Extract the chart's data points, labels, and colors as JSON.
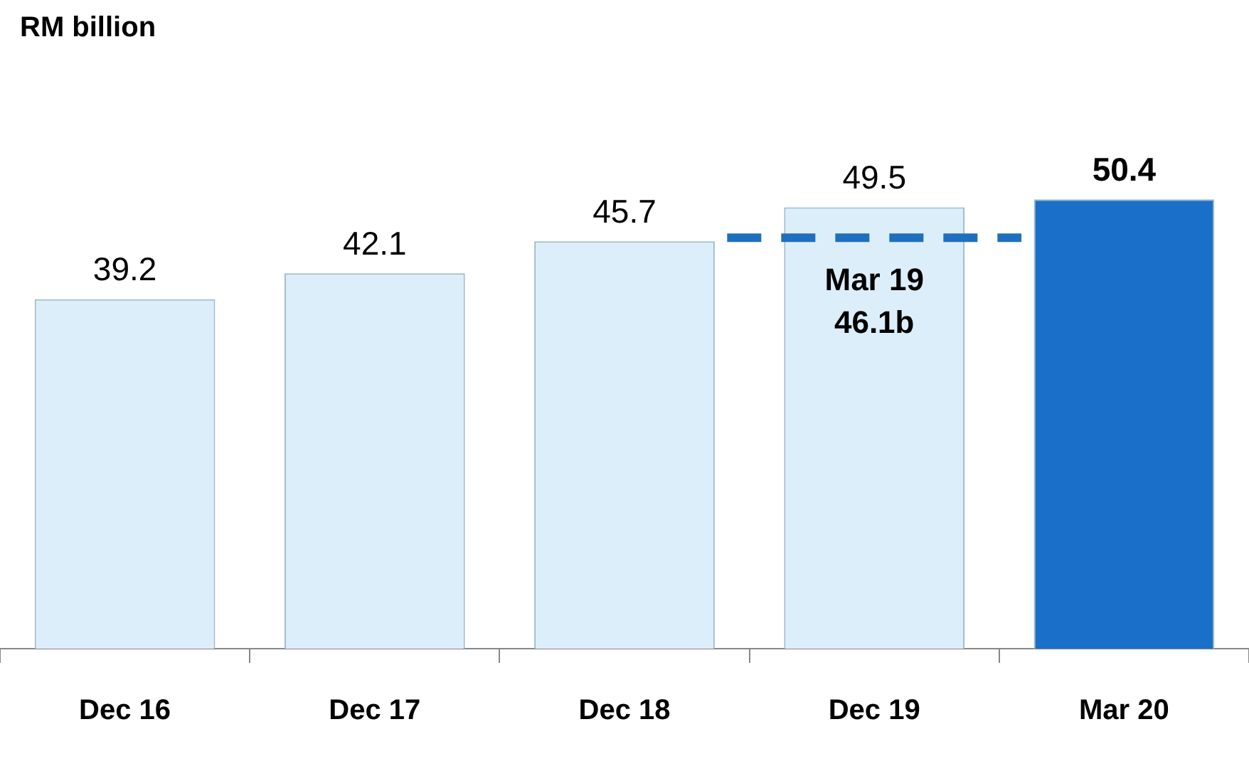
{
  "chart_data": {
    "type": "bar",
    "annotations": [
      "RM billion"
    ],
    "categories": [
      "Dec 16",
      "Dec 17",
      "Dec 18",
      "Dec 19",
      "Mar 20"
    ],
    "values": [
      39.2,
      42.1,
      45.7,
      49.5,
      50.4
    ],
    "colors": [
      "#dceefa",
      "#dceefa",
      "#dceefa",
      "#dceefa",
      "#1a6fc8"
    ],
    "ref_lines": [
      {
        "axis": "y",
        "value": 46.1,
        "label": "Mar 19\n46.1b",
        "color": "#1f6fbf",
        "line_style": "dashed"
      }
    ],
    "data_labels": true,
    "grid": false,
    "legend": false
  }
}
